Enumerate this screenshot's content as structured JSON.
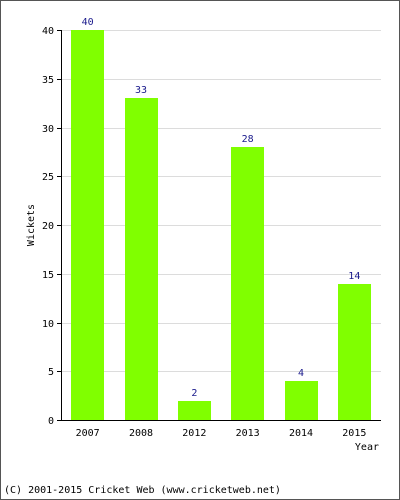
{
  "chart_data": {
    "type": "bar",
    "categories": [
      "2007",
      "2008",
      "2012",
      "2013",
      "2014",
      "2015"
    ],
    "values": [
      40,
      33,
      2,
      28,
      4,
      14
    ],
    "ylabel": "Wickets",
    "xlabel": "Year",
    "ylim": [
      0,
      40
    ],
    "yticks": [
      0,
      5,
      10,
      15,
      20,
      25,
      30,
      35,
      40
    ],
    "grid": true,
    "bar_color": "#80ff00",
    "value_label_color": "#1a1a8c"
  },
  "footer": {
    "copyright": "(C) 2001-2015 Cricket Web (www.cricketweb.net)"
  }
}
